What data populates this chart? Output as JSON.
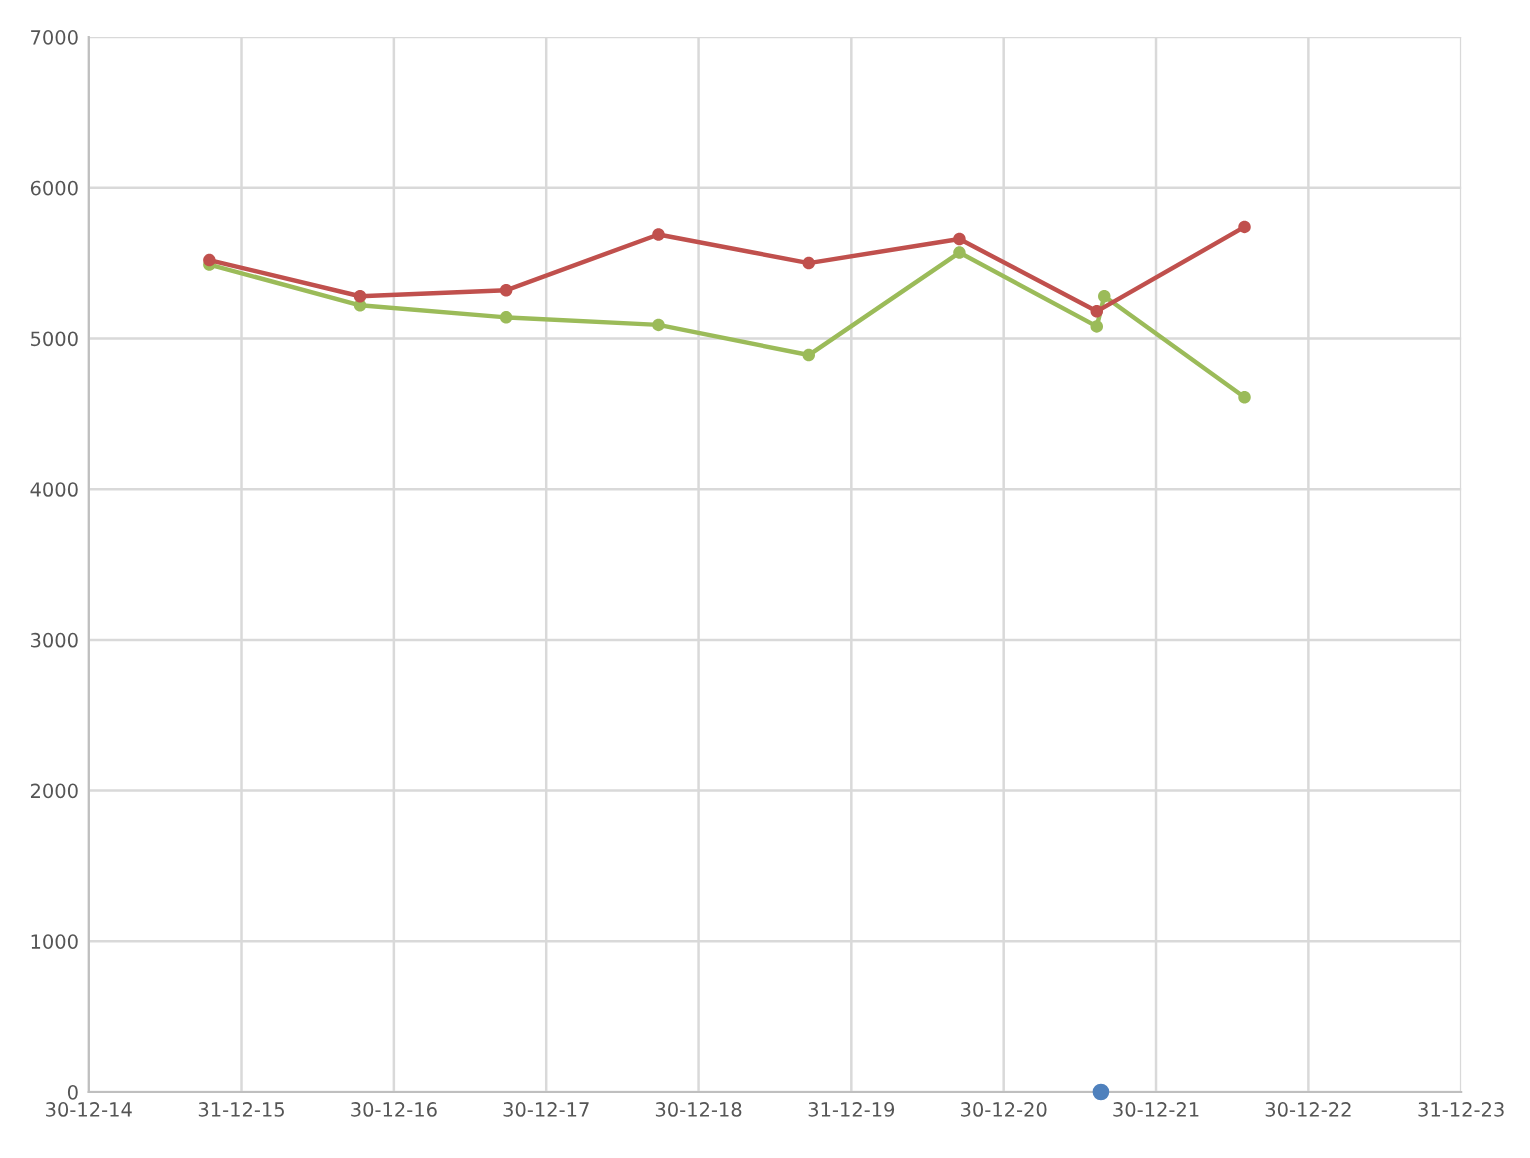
{
  "chart_data": {
    "type": "line",
    "xlim": [
      "2014-12-30",
      "2023-12-31"
    ],
    "xticks": [
      {
        "value": "2014-12-30",
        "label": "30-12-14"
      },
      {
        "value": "2015-12-31",
        "label": "31-12-15"
      },
      {
        "value": "2016-12-30",
        "label": "30-12-16"
      },
      {
        "value": "2017-12-30",
        "label": "30-12-17"
      },
      {
        "value": "2018-12-30",
        "label": "30-12-18"
      },
      {
        "value": "2019-12-31",
        "label": "31-12-19"
      },
      {
        "value": "2020-12-30",
        "label": "30-12-20"
      },
      {
        "value": "2021-12-30",
        "label": "30-12-21"
      },
      {
        "value": "2022-12-30",
        "label": "30-12-22"
      },
      {
        "value": "2023-12-31",
        "label": "31-12-23"
      }
    ],
    "ylim": [
      0,
      7000
    ],
    "yticks": [
      0,
      1000,
      2000,
      3000,
      4000,
      5000,
      6000,
      7000
    ],
    "grid": true,
    "marker": "circle",
    "line_style": "solid",
    "series": [
      {
        "color": "#c0504d",
        "x": [
          "2015-10-15",
          "2016-10-10",
          "2017-09-25",
          "2018-09-25",
          "2019-09-20",
          "2020-09-15",
          "2021-08-10",
          "2022-07-30"
        ],
        "values": [
          5520,
          5280,
          5320,
          5690,
          5500,
          5660,
          5180,
          5740
        ]
      },
      {
        "color": "#9bbb59",
        "x": [
          "2015-10-15",
          "2016-10-10",
          "2017-09-25",
          "2018-09-25",
          "2019-09-20",
          "2020-09-15",
          "2021-08-10",
          "2021-08-28",
          "2022-07-30"
        ],
        "values": [
          5490,
          5220,
          5140,
          5090,
          4890,
          5570,
          5080,
          5280,
          4610
        ]
      },
      {
        "color": "#4f81bd",
        "type": "scatter",
        "x": [
          "2021-08-20"
        ],
        "values": [
          0
        ]
      }
    ]
  }
}
